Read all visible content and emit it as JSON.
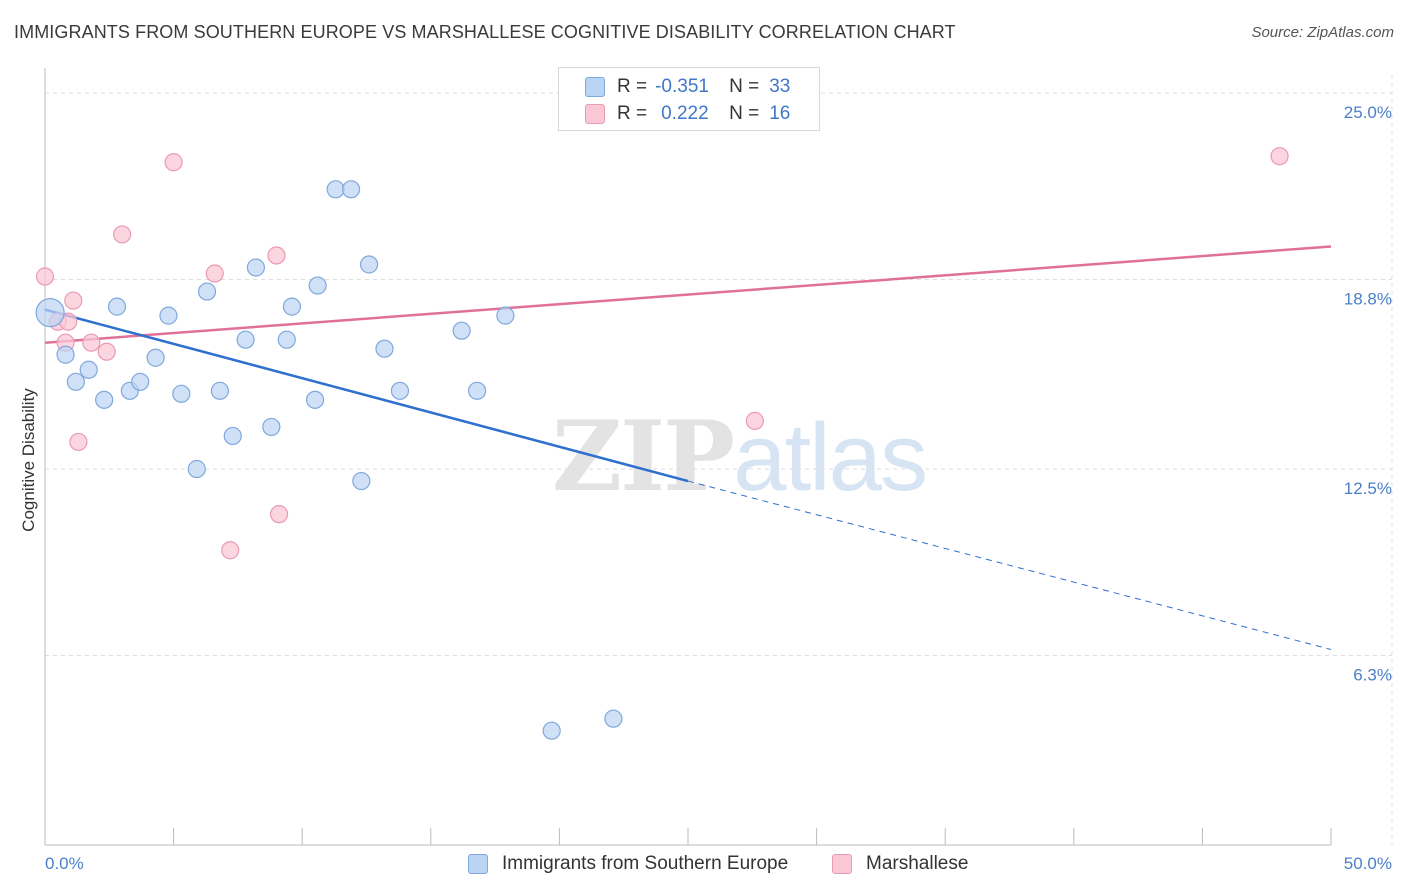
{
  "title": "IMMIGRANTS FROM SOUTHERN EUROPE VS MARSHALLESE COGNITIVE DISABILITY CORRELATION CHART",
  "source": "Source: ZipAtlas.com",
  "watermark": {
    "zip": "ZIP",
    "atlas": "atlas"
  },
  "legend_top": {
    "rows": [
      {
        "r_label": "R =",
        "r_value": "-0.351",
        "n_label": "N =",
        "n_value": "33"
      },
      {
        "r_label": "R =",
        "r_value": "0.222",
        "n_label": "N =",
        "n_value": "16"
      }
    ]
  },
  "legend_bottom": {
    "series1": "Immigrants from Southern Europe",
    "series2": "Marshallese"
  },
  "colors": {
    "blue_fill": "#bcd4f4",
    "blue_stroke": "#7fa8dc",
    "blue_line": "#2f6fcd",
    "pink_fill": "#f9c7d6",
    "pink_stroke": "#eb9ab3",
    "pink_line": "#e07098",
    "tick_text": "#4a7fc8",
    "grid": "#dddddd"
  },
  "chart_data": {
    "type": "scatter",
    "title": "IMMIGRANTS FROM SOUTHERN EUROPE VS MARSHALLESE COGNITIVE DISABILITY CORRELATION CHART",
    "xlabel": "",
    "ylabel": "Cognitive Disability",
    "xlim": [
      0,
      50
    ],
    "ylim": [
      0,
      25.6
    ],
    "x_tick_labels": [
      "0.0%",
      "50.0%"
    ],
    "y_ticks": [
      6.3,
      12.5,
      18.8,
      25.0
    ],
    "y_tick_labels": [
      "6.3%",
      "12.5%",
      "18.8%",
      "25.0%"
    ],
    "grid": true,
    "legend_position": "top-center",
    "series": [
      {
        "name": "Immigrants from Southern Europe",
        "R": -0.351,
        "N": 33,
        "points": [
          [
            0.2,
            17.7
          ],
          [
            0.8,
            16.3
          ],
          [
            1.2,
            15.4
          ],
          [
            1.7,
            15.8
          ],
          [
            2.3,
            14.8
          ],
          [
            2.8,
            17.9
          ],
          [
            3.3,
            15.1
          ],
          [
            3.7,
            15.4
          ],
          [
            4.3,
            16.2
          ],
          [
            4.8,
            17.6
          ],
          [
            5.3,
            15.0
          ],
          [
            5.9,
            12.5
          ],
          [
            6.3,
            18.4
          ],
          [
            6.8,
            15.1
          ],
          [
            7.3,
            13.6
          ],
          [
            7.8,
            16.8
          ],
          [
            8.2,
            19.2
          ],
          [
            8.8,
            13.9
          ],
          [
            9.4,
            16.8
          ],
          [
            9.6,
            17.9
          ],
          [
            10.5,
            14.8
          ],
          [
            10.6,
            18.6
          ],
          [
            11.3,
            21.8
          ],
          [
            11.9,
            21.8
          ],
          [
            12.3,
            12.1
          ],
          [
            12.6,
            19.3
          ],
          [
            13.2,
            16.5
          ],
          [
            13.8,
            15.1
          ],
          [
            16.2,
            17.1
          ],
          [
            16.8,
            15.1
          ],
          [
            17.9,
            17.6
          ],
          [
            19.7,
            3.8
          ],
          [
            22.1,
            4.2
          ]
        ],
        "trend": {
          "x": [
            0,
            25
          ],
          "y": [
            17.8,
            12.1
          ],
          "dashed_extension": {
            "x": [
              25,
              50
            ],
            "y": [
              12.1,
              6.5
            ]
          }
        }
      },
      {
        "name": "Marshallese",
        "R": 0.222,
        "N": 16,
        "points": [
          [
            0.0,
            18.9
          ],
          [
            0.5,
            17.4
          ],
          [
            0.8,
            16.7
          ],
          [
            1.1,
            18.1
          ],
          [
            1.3,
            13.4
          ],
          [
            1.8,
            16.7
          ],
          [
            2.4,
            16.4
          ],
          [
            3.0,
            20.3
          ],
          [
            5.0,
            22.7
          ],
          [
            6.6,
            19.0
          ],
          [
            7.2,
            9.8
          ],
          [
            9.0,
            19.6
          ],
          [
            9.1,
            11.0
          ],
          [
            27.6,
            14.1
          ],
          [
            48.0,
            22.9
          ],
          [
            0.9,
            17.4
          ]
        ],
        "trend": {
          "x": [
            0,
            50
          ],
          "y": [
            16.7,
            19.9
          ]
        }
      }
    ]
  }
}
